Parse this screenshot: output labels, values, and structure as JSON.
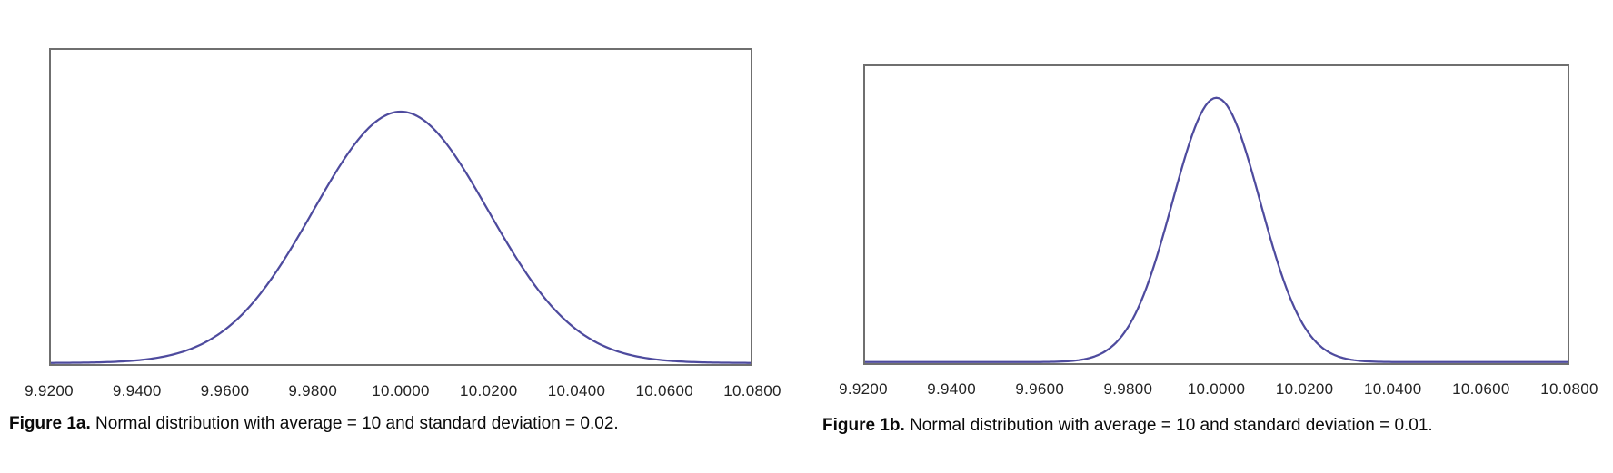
{
  "page": {
    "background_color": "#ffffff"
  },
  "chart_data": [
    {
      "type": "line",
      "subtype": "normal-distribution-density",
      "title": "",
      "xlabel": "",
      "ylabel": "",
      "mean": 10,
      "std": 0.02,
      "x_range": [
        9.92,
        10.08
      ],
      "x_ticks": [
        "9.9200",
        "9.9400",
        "9.9600",
        "9.9800",
        "10.0000",
        "10.0200",
        "10.0400",
        "10.0600",
        "10.0800"
      ],
      "y_axis_visible": false,
      "grid": false,
      "legend": false,
      "curve_color": "#4e4b9e",
      "frame_border_color": "#6f6f6f",
      "peak_height_fraction": 0.8,
      "caption_label": "Figure 1a.",
      "caption_text": "Normal distribution with average = 10 and standard deviation = 0.02."
    },
    {
      "type": "line",
      "subtype": "normal-distribution-density",
      "title": "",
      "xlabel": "",
      "ylabel": "",
      "mean": 10,
      "std": 0.01,
      "x_range": [
        9.92,
        10.08
      ],
      "x_ticks": [
        "9.9200",
        "9.9400",
        "9.9600",
        "9.9800",
        "10.0000",
        "10.0200",
        "10.0400",
        "10.0600",
        "10.0800"
      ],
      "y_axis_visible": false,
      "grid": false,
      "legend": false,
      "curve_color": "#4e4b9e",
      "frame_border_color": "#6f6f6f",
      "peak_height_fraction": 0.89,
      "caption_label": "Figure 1b.",
      "caption_text": "Normal distribution with average = 10 and standard deviation = 0.01."
    }
  ]
}
